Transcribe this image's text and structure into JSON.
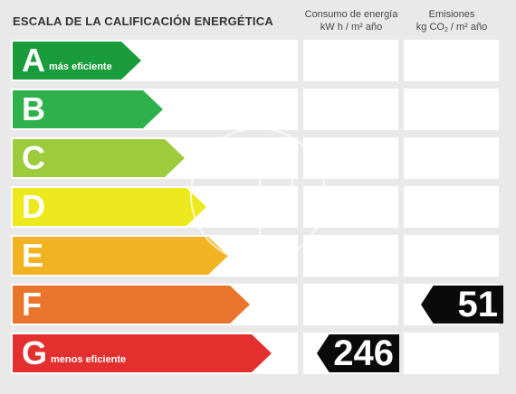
{
  "header": {
    "title": "ESCALA DE LA CALIFICACIÓN ENERGÉTICA",
    "consumo_line1": "Consumo de energía",
    "consumo_line2": "kW h  / m² año",
    "emisiones_line1": "Emisiones",
    "emisiones_kg": "kg CO",
    "emisiones_sub": "2",
    "emisiones_unit": "  / m² año"
  },
  "rows": [
    {
      "letter": "A",
      "sub": "más eficiente",
      "color": "#1a9b3c"
    },
    {
      "letter": "B",
      "sub": "",
      "color": "#2eb14a"
    },
    {
      "letter": "C",
      "sub": "",
      "color": "#9dcb3b"
    },
    {
      "letter": "D",
      "sub": "",
      "color": "#ece91e"
    },
    {
      "letter": "E",
      "sub": "",
      "color": "#f2b322"
    },
    {
      "letter": "F",
      "sub": "",
      "color": "#e8752b"
    },
    {
      "letter": "G",
      "sub": "menos eficiente",
      "color": "#e3302e"
    }
  ],
  "ratings": {
    "consumo": {
      "row": "G",
      "value": "246"
    },
    "emisiones": {
      "row": "F",
      "value": "51"
    }
  }
}
